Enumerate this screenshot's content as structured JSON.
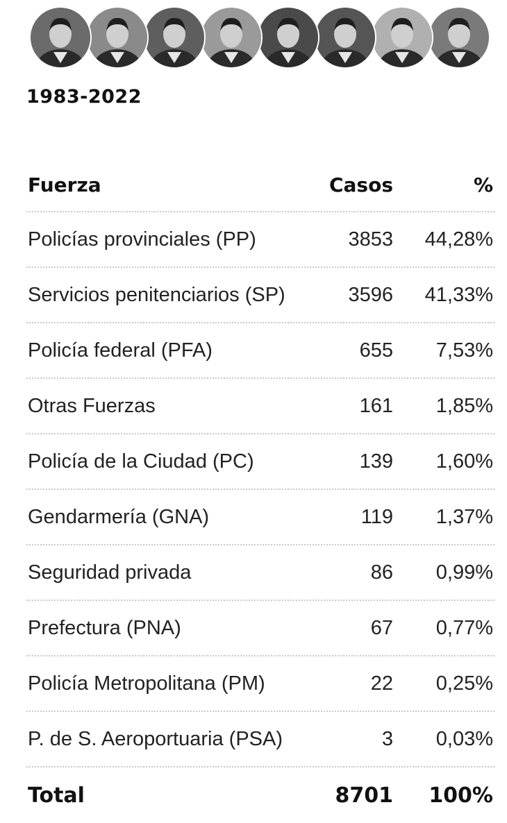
{
  "period": "1983-2022",
  "portraits": [
    {
      "icon": "portrait-1-icon",
      "tone": "#6b6b6b"
    },
    {
      "icon": "portrait-2-icon",
      "tone": "#8a8a8a"
    },
    {
      "icon": "portrait-3-icon",
      "tone": "#5e5e5e"
    },
    {
      "icon": "portrait-4-icon",
      "tone": "#9a9a9a"
    },
    {
      "icon": "portrait-5-icon",
      "tone": "#4a4a4a"
    },
    {
      "icon": "portrait-6-icon",
      "tone": "#555555"
    },
    {
      "icon": "portrait-7-icon",
      "tone": "#b0b0b0"
    },
    {
      "icon": "portrait-8-icon",
      "tone": "#7a7a7a"
    }
  ],
  "chart_data": {
    "type": "table",
    "columns": [
      "Fuerza",
      "Casos",
      "%"
    ],
    "rows": [
      {
        "fuerza": "Policías provinciales (PP)",
        "casos": "3853",
        "pct": "44,28%"
      },
      {
        "fuerza": "Servicios penitenciarios (SP)",
        "casos": "3596",
        "pct": "41,33%"
      },
      {
        "fuerza": "Policía federal (PFA)",
        "casos": "655",
        "pct": "7,53%"
      },
      {
        "fuerza": "Otras Fuerzas",
        "casos": "161",
        "pct": "1,85%"
      },
      {
        "fuerza": "Policía de la Ciudad (PC)",
        "casos": "139",
        "pct": "1,60%"
      },
      {
        "fuerza": "Gendarmería (GNA)",
        "casos": "119",
        "pct": "1,37%"
      },
      {
        "fuerza": "Seguridad privada",
        "casos": "86",
        "pct": "0,99%"
      },
      {
        "fuerza": "Prefectura (PNA)",
        "casos": "67",
        "pct": "0,77%"
      },
      {
        "fuerza": "Policía Metropolitana (PM)",
        "casos": "22",
        "pct": "0,25%"
      },
      {
        "fuerza": "P. de S. Aeroportuaria (PSA)",
        "casos": "3",
        "pct": "0,03%"
      }
    ],
    "total": {
      "label": "Total",
      "casos": "8701",
      "pct": "100%"
    }
  }
}
